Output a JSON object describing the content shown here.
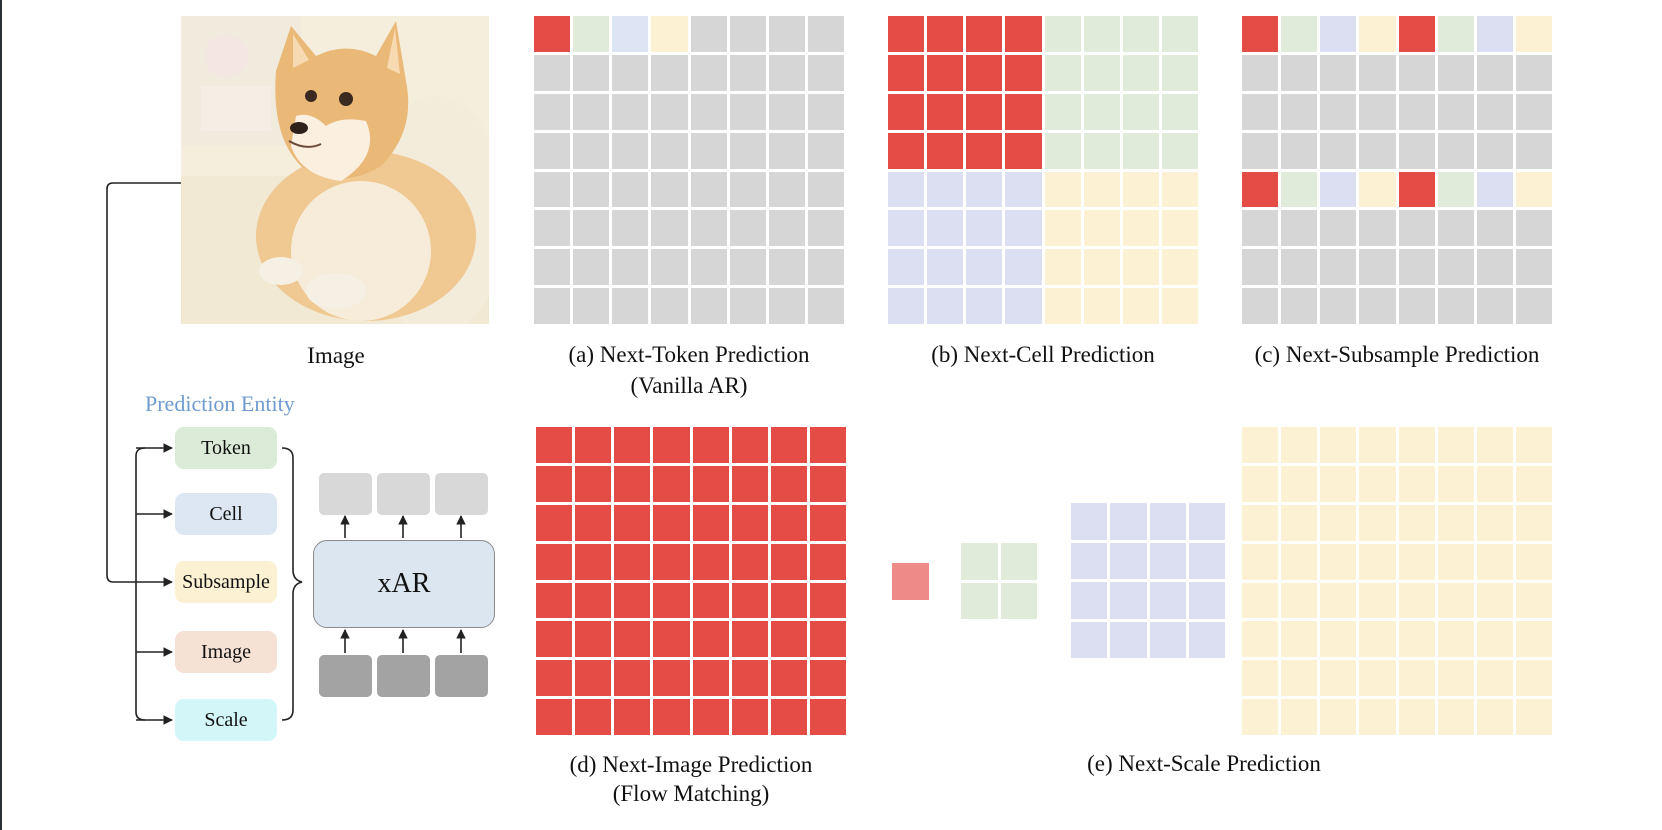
{
  "image": {
    "label": "Image"
  },
  "prediction_entity": {
    "title": "Prediction Entity",
    "items": [
      {
        "label": "Token",
        "color": "#dcebd7"
      },
      {
        "label": "Cell",
        "color": "#dde7f3"
      },
      {
        "label": "Subsample",
        "color": "#fcf1d2"
      },
      {
        "label": "Image",
        "color": "#f6e1d5"
      },
      {
        "label": "Scale",
        "color": "#d3f6f8"
      }
    ]
  },
  "model": {
    "label": "xAR"
  },
  "panels": {
    "a": {
      "line1": "(a) Next-Token Prediction",
      "line2": "(Vanilla AR)"
    },
    "b": {
      "line1": "(b) Next-Cell Prediction"
    },
    "c": {
      "line1": "(c) Next-Subsample Prediction"
    },
    "d": {
      "line1": "(d) Next-Image Prediction",
      "line2": "(Flow Matching)"
    },
    "e": {
      "line1": "(e) Next-Scale Prediction"
    }
  },
  "colors": {
    "red": "#e34d45",
    "green": "#e0ebd9",
    "blue": "#dde5f4",
    "violet": "#dcdff2",
    "yellow": "#fcf1d3",
    "gray": "#d6d6d6",
    "pink": "#ec8b88"
  }
}
